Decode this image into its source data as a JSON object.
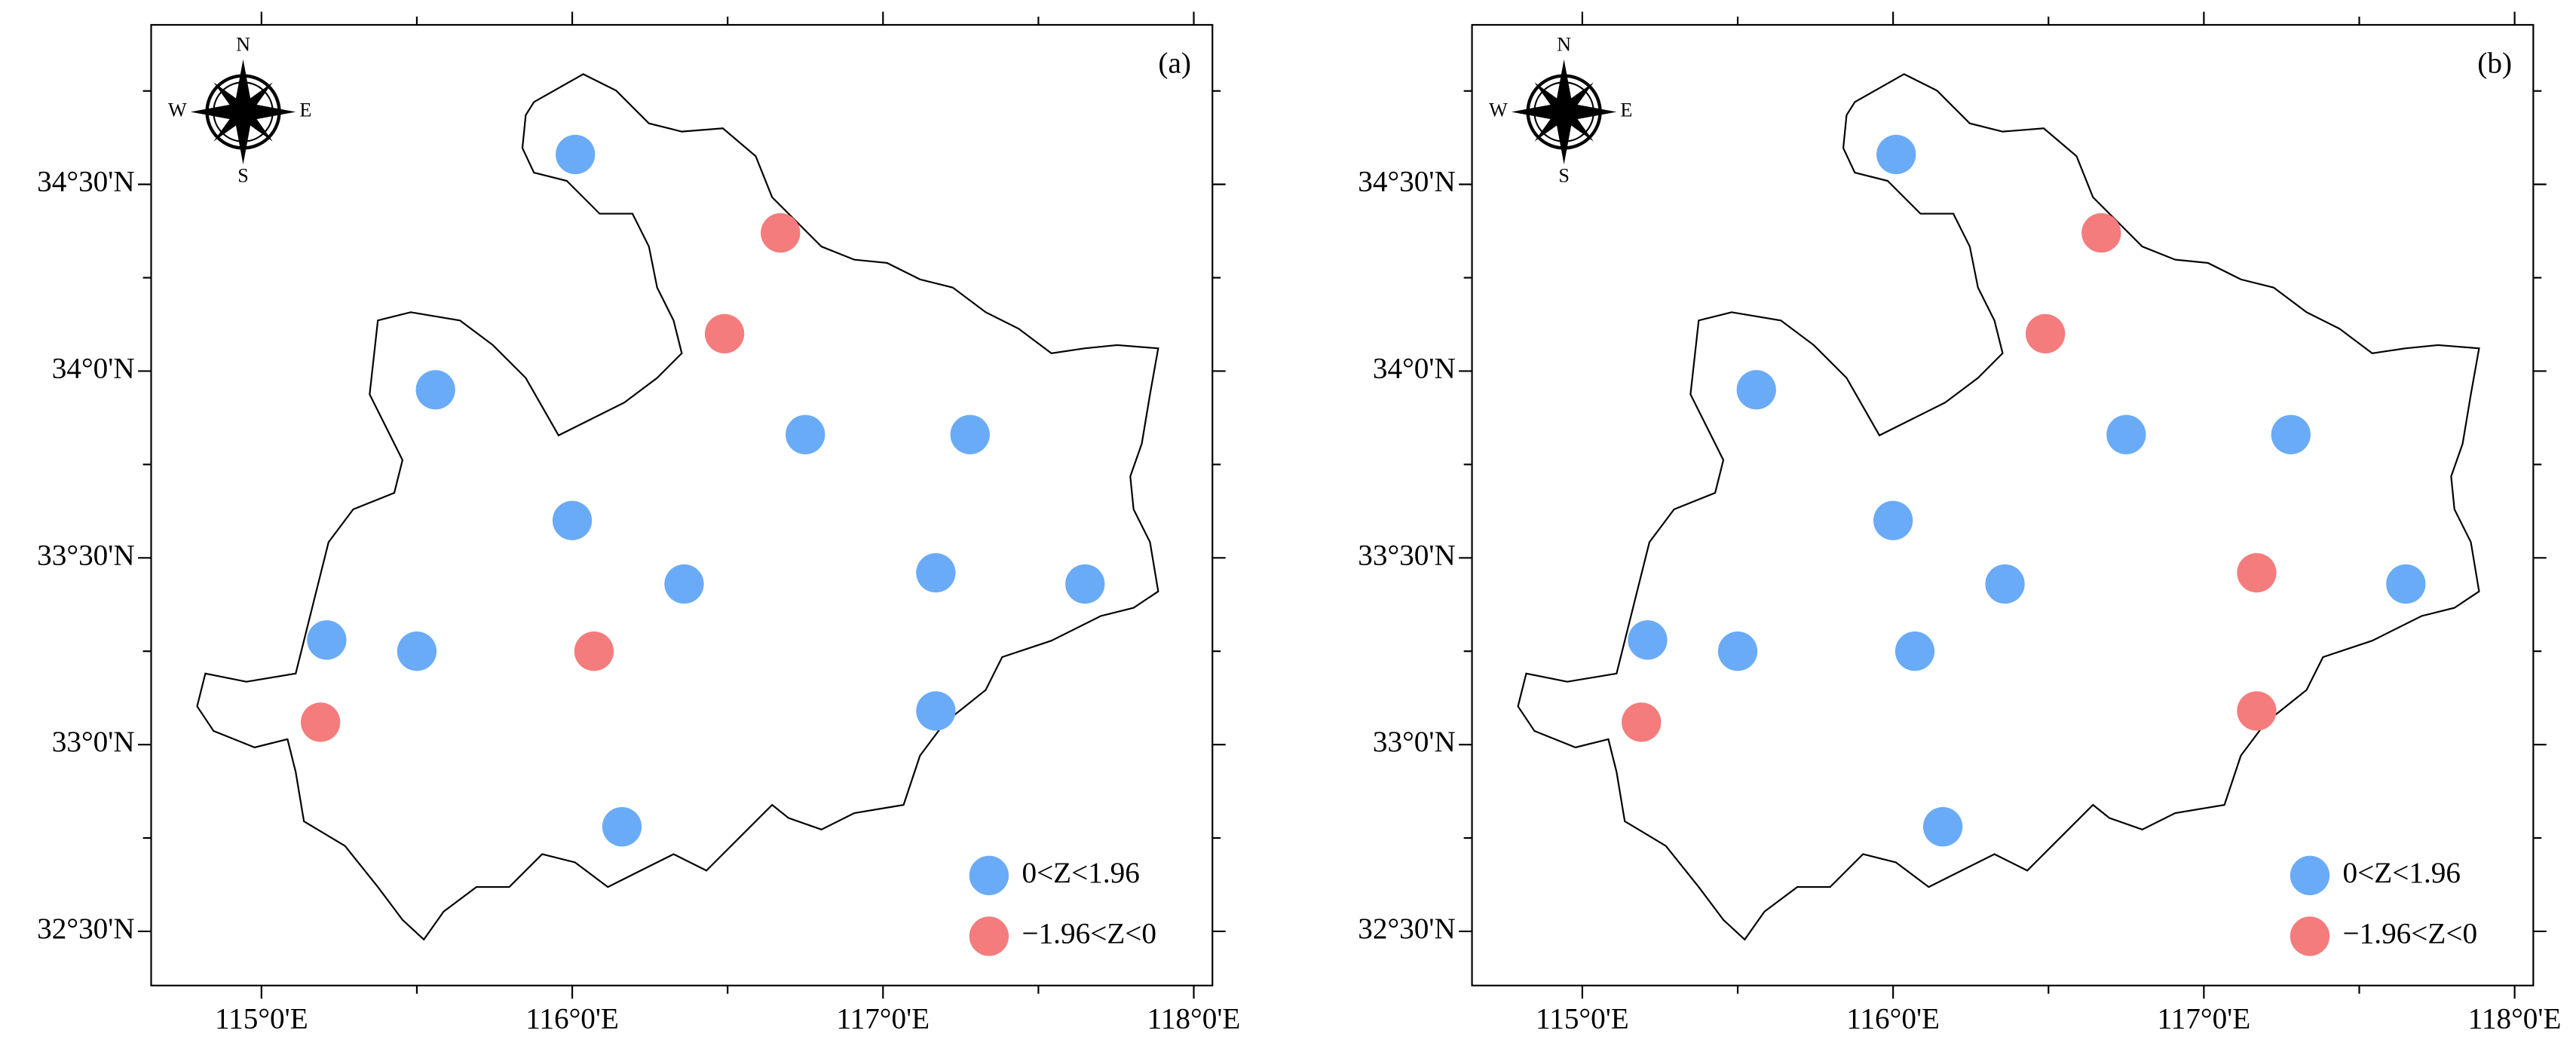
{
  "map": {
    "xlim": [
      114.645,
      118.06
    ],
    "ylim": [
      32.355,
      34.927
    ],
    "xticks": [
      {
        "value": 115,
        "label": "115°0'E"
      },
      {
        "value": 116,
        "label": "116°0'E"
      },
      {
        "value": 117,
        "label": "117°0'E"
      },
      {
        "value": 118,
        "label": "118°0'E"
      }
    ],
    "yticks": [
      {
        "value": 32.5,
        "label": "32°30'N"
      },
      {
        "value": 33,
        "label": "33°0'N"
      },
      {
        "value": 33.5,
        "label": "33°30'N"
      },
      {
        "value": 34,
        "label": "34°0'N"
      },
      {
        "value": 34.5,
        "label": "34°30'N"
      }
    ],
    "xminorticks": [
      115.5,
      116.5,
      117.5
    ],
    "yminorticks": [
      32.75,
      33.25,
      33.75,
      34.25,
      34.75
    ],
    "compass": {
      "n": "N",
      "s": "S",
      "e": "E",
      "w": "W"
    },
    "legend": [
      {
        "name": "0<Z<1.96",
        "color": "#6aabf7"
      },
      {
        "name": "−1.96<Z<0",
        "color": "#f47c7c"
      }
    ],
    "stations": [
      {
        "lon": 116.01,
        "lat": 34.58
      },
      {
        "lon": 116.67,
        "lat": 34.37
      },
      {
        "lon": 116.49,
        "lat": 34.1
      },
      {
        "lon": 115.56,
        "lat": 33.95
      },
      {
        "lon": 116.75,
        "lat": 33.83
      },
      {
        "lon": 117.28,
        "lat": 33.83
      },
      {
        "lon": 116.0,
        "lat": 33.6
      },
      {
        "lon": 116.36,
        "lat": 33.43
      },
      {
        "lon": 117.17,
        "lat": 33.46
      },
      {
        "lon": 117.65,
        "lat": 33.43
      },
      {
        "lon": 115.21,
        "lat": 33.28
      },
      {
        "lon": 115.5,
        "lat": 33.25
      },
      {
        "lon": 116.07,
        "lat": 33.25
      },
      {
        "lon": 115.19,
        "lat": 33.06
      },
      {
        "lon": 117.17,
        "lat": 33.09
      },
      {
        "lon": 116.16,
        "lat": 32.78
      }
    ],
    "panels": [
      {
        "label": "(a)",
        "classes": [
          0,
          1,
          1,
          0,
          0,
          0,
          0,
          0,
          0,
          0,
          0,
          0,
          1,
          1,
          0,
          0
        ]
      },
      {
        "label": "(b)",
        "classes": [
          0,
          1,
          1,
          0,
          0,
          0,
          0,
          0,
          1,
          0,
          0,
          0,
          0,
          1,
          1,
          0
        ]
      }
    ]
  }
}
